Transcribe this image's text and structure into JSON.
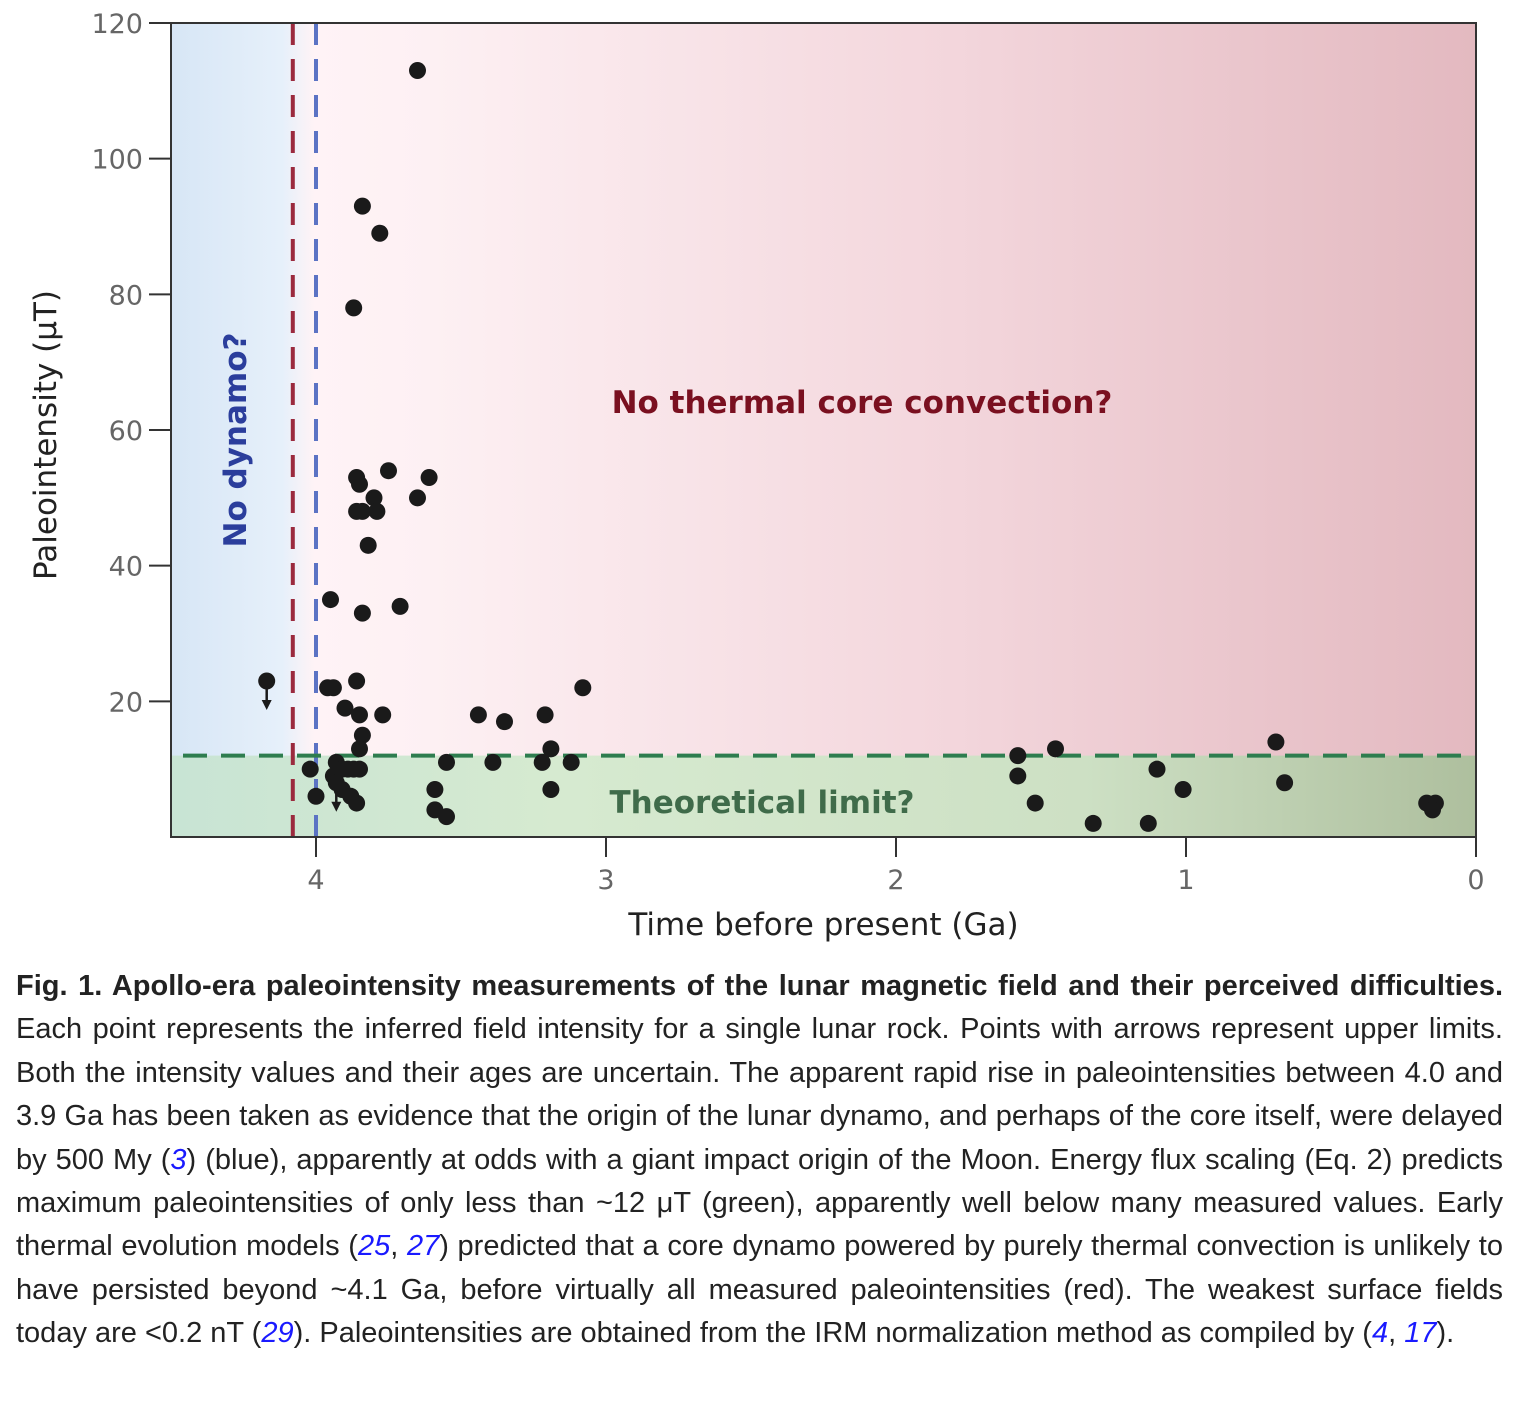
{
  "chart_data": {
    "type": "scatter",
    "xlabel": "Time before present (Ga)",
    "ylabel": "Paleointensity (μT)",
    "xlim": [
      4.5,
      0
    ],
    "ylim": [
      0,
      120
    ],
    "x_ticks": [
      "4",
      "3",
      "2",
      "1",
      "0"
    ],
    "y_ticks": [
      "20",
      "40",
      "60",
      "80",
      "100",
      "120"
    ],
    "x_tick_values": [
      4,
      3,
      2,
      1,
      0
    ],
    "y_tick_values": [
      20,
      40,
      60,
      80,
      100,
      120
    ],
    "annotations": {
      "no_dynamo": "No dynamo?",
      "no_thermal": "No thermal core convection?",
      "theoretical_limit": "Theoretical limit?"
    },
    "reference_lines": {
      "thermal_convection_limit_ga": 4.08,
      "dynamo_onset_ga": 4.0,
      "theoretical_limit_ut": 12
    },
    "colors": {
      "red_line": "#9b2a3e",
      "blue_line": "#5b73c4",
      "green_line": "#2e7d4f",
      "no_dynamo_text": "#2b3e9c",
      "no_thermal_text": "#7a1020",
      "theoretical_text": "#3f6b4a",
      "points": "#1a1a1a"
    },
    "points": [
      {
        "x": 3.65,
        "y": 113
      },
      {
        "x": 3.84,
        "y": 93
      },
      {
        "x": 3.78,
        "y": 89
      },
      {
        "x": 3.87,
        "y": 78
      },
      {
        "x": 3.86,
        "y": 53
      },
      {
        "x": 3.85,
        "y": 52
      },
      {
        "x": 3.75,
        "y": 54
      },
      {
        "x": 3.61,
        "y": 53
      },
      {
        "x": 3.8,
        "y": 50
      },
      {
        "x": 3.65,
        "y": 50
      },
      {
        "x": 3.86,
        "y": 48
      },
      {
        "x": 3.84,
        "y": 48
      },
      {
        "x": 3.79,
        "y": 48
      },
      {
        "x": 3.82,
        "y": 43
      },
      {
        "x": 3.95,
        "y": 35
      },
      {
        "x": 3.84,
        "y": 33
      },
      {
        "x": 3.71,
        "y": 34
      },
      {
        "x": 3.96,
        "y": 22
      },
      {
        "x": 3.94,
        "y": 22
      },
      {
        "x": 3.86,
        "y": 23
      },
      {
        "x": 3.08,
        "y": 22
      },
      {
        "x": 3.9,
        "y": 19
      },
      {
        "x": 3.85,
        "y": 18
      },
      {
        "x": 3.77,
        "y": 18
      },
      {
        "x": 3.44,
        "y": 18
      },
      {
        "x": 3.35,
        "y": 17
      },
      {
        "x": 3.21,
        "y": 18
      },
      {
        "x": 3.84,
        "y": 15
      },
      {
        "x": 3.85,
        "y": 13
      },
      {
        "x": 3.19,
        "y": 13
      },
      {
        "x": 4.02,
        "y": 10
      },
      {
        "x": 3.93,
        "y": 11
      },
      {
        "x": 3.91,
        "y": 10
      },
      {
        "x": 3.89,
        "y": 10
      },
      {
        "x": 3.87,
        "y": 10
      },
      {
        "x": 3.85,
        "y": 10
      },
      {
        "x": 3.94,
        "y": 9
      },
      {
        "x": 3.91,
        "y": 7
      },
      {
        "x": 3.88,
        "y": 6
      },
      {
        "x": 4.0,
        "y": 6
      },
      {
        "x": 3.86,
        "y": 5
      },
      {
        "x": 3.55,
        "y": 11
      },
      {
        "x": 3.39,
        "y": 11
      },
      {
        "x": 3.22,
        "y": 11
      },
      {
        "x": 3.12,
        "y": 11
      },
      {
        "x": 3.59,
        "y": 7
      },
      {
        "x": 3.19,
        "y": 7
      },
      {
        "x": 3.59,
        "y": 4
      },
      {
        "x": 3.55,
        "y": 3
      },
      {
        "x": 1.58,
        "y": 12
      },
      {
        "x": 1.45,
        "y": 13
      },
      {
        "x": 1.58,
        "y": 9
      },
      {
        "x": 1.52,
        "y": 5
      },
      {
        "x": 1.32,
        "y": 2
      },
      {
        "x": 1.13,
        "y": 2
      },
      {
        "x": 1.1,
        "y": 10
      },
      {
        "x": 1.01,
        "y": 7
      },
      {
        "x": 0.69,
        "y": 14
      },
      {
        "x": 0.66,
        "y": 8
      },
      {
        "x": 0.17,
        "y": 5
      },
      {
        "x": 0.14,
        "y": 5
      },
      {
        "x": 0.15,
        "y": 4
      }
    ],
    "upper_limits": [
      {
        "x": 4.17,
        "y": 23
      },
      {
        "x": 3.93,
        "y": 8
      }
    ]
  },
  "caption": {
    "title": "Fig. 1. Apollo-era paleointensity measurements of the lunar magnetic field and their perceived difficulties.",
    "p1": " Each point represents the inferred field intensity for a single lunar rock. Points with arrows represent upper limits. Both the intensity values and their ages are uncertain. The apparent rapid rise in paleointensities between 4.0 and 3.9 Ga has been taken as evidence that the origin of the lunar dynamo, and perhaps of the core itself, were delayed by 500 My (",
    "ref3": "3",
    "p2": ") (blue), apparently at odds with a giant impact origin of the Moon. Energy flux scaling (Eq. 2) predicts maximum paleointensities of only less than ~12 μT (green), apparently well below many measured values. Early thermal evolution models (",
    "ref25": "25",
    "sep1": ", ",
    "ref27": "27",
    "p3": ") predicted that a core dynamo powered by purely thermal convection is unlikely to have persisted beyond ~4.1 Ga, before virtually all measured paleointensities (red). The weakest surface fields today are <0.2 nT (",
    "ref29": "29",
    "p4": "). Paleointensities are obtained from the IRM normalization method as compiled by (",
    "ref4": "4",
    "sep2": ", ",
    "ref17": "17",
    "p5": ")."
  }
}
